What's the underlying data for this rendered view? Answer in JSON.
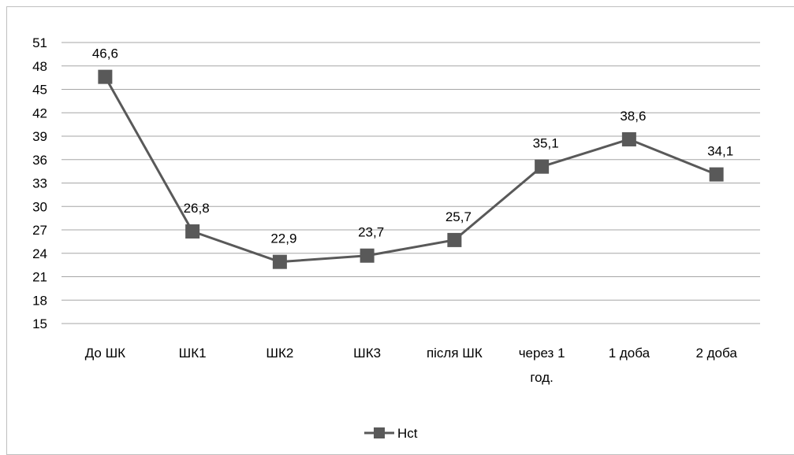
{
  "chart_data": {
    "type": "line",
    "categories": [
      [
        "До ШК"
      ],
      [
        "ШК1"
      ],
      [
        "ШК2"
      ],
      [
        "ШК3"
      ],
      [
        "після ШК"
      ],
      [
        "через 1",
        "год."
      ],
      [
        "1 доба"
      ],
      [
        "2 доба"
      ]
    ],
    "series": [
      {
        "name": "Hct",
        "values": [
          46.6,
          26.8,
          22.9,
          23.7,
          25.7,
          35.1,
          38.6,
          34.1
        ],
        "labels": [
          "46,6",
          "26,8",
          "22,9",
          "23,7",
          "25,7",
          "35,1",
          "38,6",
          "34,1"
        ],
        "color": "#595959"
      }
    ],
    "y_ticks": [
      15,
      18,
      21,
      24,
      27,
      30,
      33,
      36,
      39,
      42,
      45,
      48,
      51
    ],
    "ylim": [
      15,
      51
    ],
    "grid": true,
    "legend_position": "bottom",
    "title": "",
    "xlabel": "",
    "ylabel": ""
  }
}
